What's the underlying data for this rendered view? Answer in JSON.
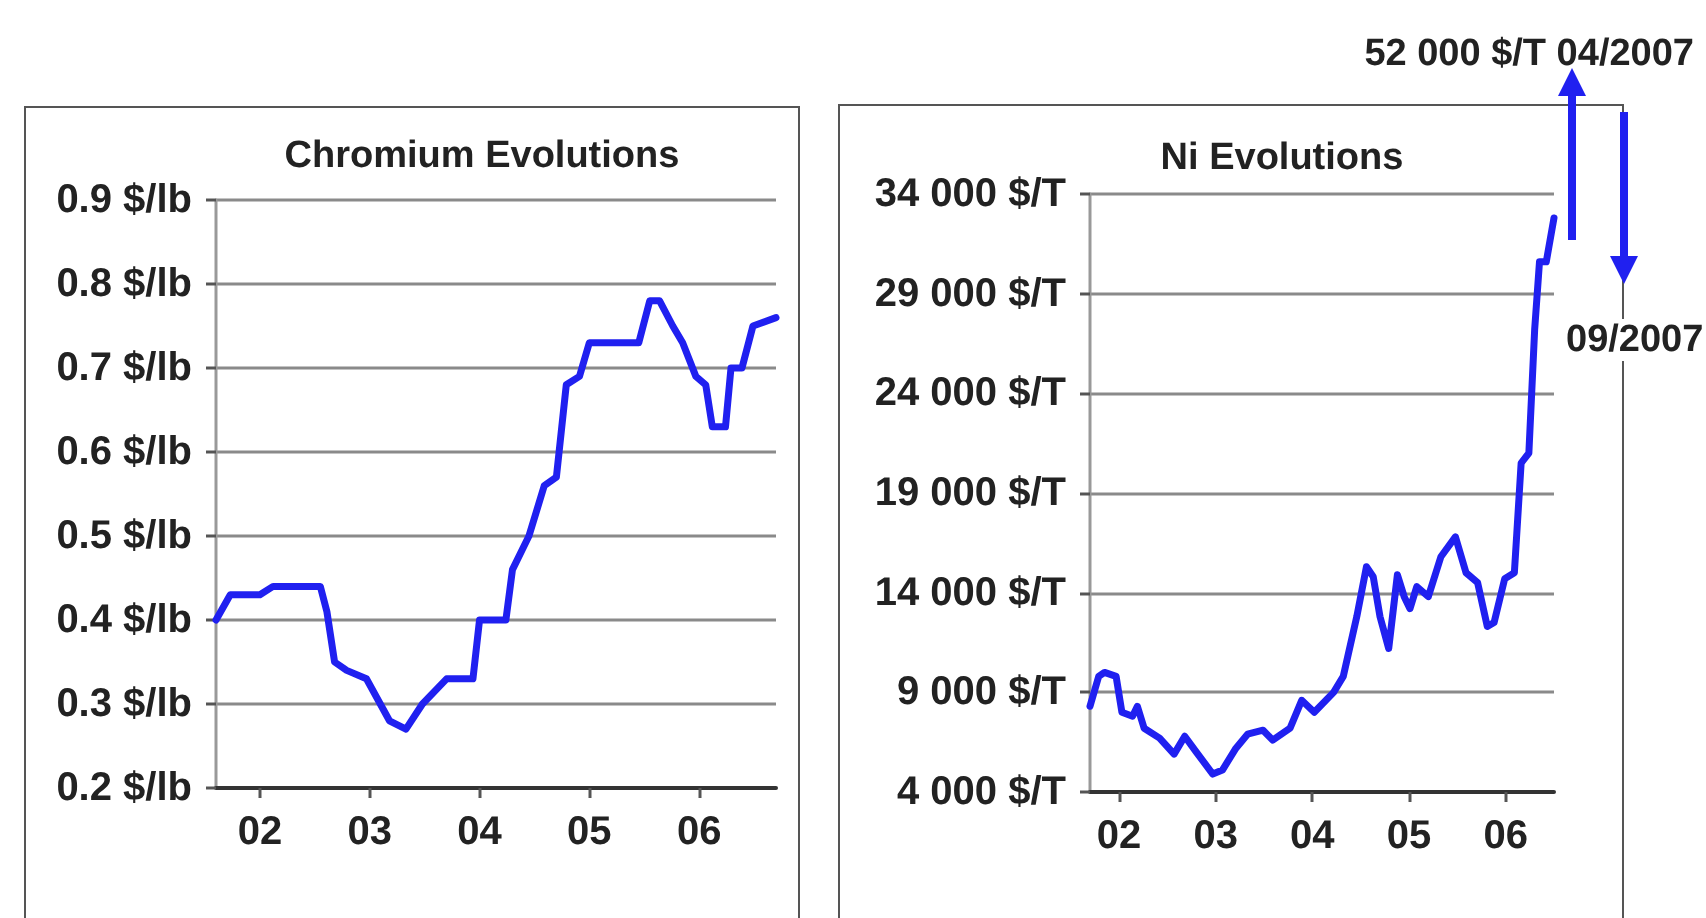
{
  "chart_data": [
    {
      "type": "line",
      "title": "Chromium Evolutions",
      "x": [
        2001.6,
        2001.73,
        2001.79,
        2002.0,
        2002.12,
        2002.55,
        2002.61,
        2002.68,
        2002.79,
        2002.97,
        2003.18,
        2003.33,
        2003.48,
        2003.7,
        2003.94,
        2004.0,
        2004.24,
        2004.3,
        2004.45,
        2004.59,
        2004.7,
        2004.79,
        2004.91,
        2005.0,
        2005.45,
        2005.55,
        2005.64,
        2005.76,
        2005.85,
        2005.97,
        2006.06,
        2006.12,
        2006.24,
        2006.29,
        2006.39,
        2006.49,
        2006.7
      ],
      "series": [
        {
          "color": "#2020f0",
          "values": [
            0.4,
            0.43,
            0.43,
            0.43,
            0.44,
            0.44,
            0.41,
            0.35,
            0.34,
            0.33,
            0.28,
            0.27,
            0.3,
            0.33,
            0.33,
            0.4,
            0.4,
            0.46,
            0.5,
            0.56,
            0.57,
            0.68,
            0.69,
            0.73,
            0.73,
            0.78,
            0.78,
            0.75,
            0.73,
            0.69,
            0.68,
            0.63,
            0.63,
            0.7,
            0.7,
            0.75,
            0.76
          ]
        }
      ],
      "xlim": [
        2001.6,
        2006.7
      ],
      "xticks": [
        {
          "value": 2002,
          "label": "02"
        },
        {
          "value": 2003,
          "label": "03"
        },
        {
          "value": 2004,
          "label": "04"
        },
        {
          "value": 2005,
          "label": "05"
        },
        {
          "value": 2006,
          "label": "06"
        }
      ],
      "ylim": [
        0.2,
        0.9
      ],
      "yticks": [
        {
          "value": 0.2,
          "label": "0.2 $/lb"
        },
        {
          "value": 0.3,
          "label": "0.3 $/lb"
        },
        {
          "value": 0.4,
          "label": "0.4 $/lb"
        },
        {
          "value": 0.5,
          "label": "0.5 $/lb"
        },
        {
          "value": 0.6,
          "label": "0.6 $/lb"
        },
        {
          "value": 0.7,
          "label": "0.7 $/lb"
        },
        {
          "value": 0.8,
          "label": "0.8 $/lb"
        },
        {
          "value": 0.9,
          "label": "0.9 $/lb"
        }
      ],
      "grid": "y",
      "marker": "none",
      "line_style": "solid"
    },
    {
      "type": "line",
      "title": "Ni Evolutions",
      "annotations": [
        "52 000 $/T 04/2007",
        "09/2007"
      ],
      "x": [
        2001.7,
        2001.79,
        2001.85,
        2001.97,
        2002.03,
        2002.14,
        2002.19,
        2002.26,
        2002.42,
        2002.57,
        2002.68,
        2002.8,
        2002.97,
        2003.07,
        2003.21,
        2003.33,
        2003.49,
        2003.59,
        2003.77,
        2003.89,
        2004.02,
        2004.22,
        2004.32,
        2004.46,
        2004.56,
        2004.63,
        2004.7,
        2004.79,
        2004.88,
        2004.95,
        2005.01,
        2005.08,
        2005.2,
        2005.33,
        2005.48,
        2005.59,
        2005.71,
        2005.81,
        2005.88,
        2005.99,
        2006.09,
        2006.16,
        2006.24,
        2006.3,
        2006.35,
        2006.42,
        2006.5
      ],
      "series": [
        {
          "color": "#2020f0",
          "values": [
            8300,
            9800,
            10000,
            9800,
            8000,
            7800,
            8300,
            7200,
            6700,
            5900,
            6800,
            6000,
            4900,
            5100,
            6200,
            6900,
            7100,
            6600,
            7200,
            8600,
            8000,
            9000,
            9800,
            12800,
            15300,
            14800,
            12800,
            11200,
            14900,
            13800,
            13200,
            14300,
            13800,
            15800,
            16800,
            15000,
            14500,
            12300,
            12500,
            14700,
            15000,
            20500,
            21000,
            27200,
            30600,
            30600,
            32800
          ]
        }
      ],
      "xlim": [
        2001.7,
        2006.5
      ],
      "xticks": [
        {
          "value": 2002,
          "label": "02"
        },
        {
          "value": 2003,
          "label": "03"
        },
        {
          "value": 2004,
          "label": "04"
        },
        {
          "value": 2005,
          "label": "05"
        },
        {
          "value": 2006,
          "label": "06"
        }
      ],
      "ylim": [
        4000,
        34000
      ],
      "yticks": [
        {
          "value": 4000,
          "label": "4 000 $/T"
        },
        {
          "value": 9000,
          "label": "9 000 $/T"
        },
        {
          "value": 14000,
          "label": "14 000 $/T"
        },
        {
          "value": 19000,
          "label": "19 000 $/T"
        },
        {
          "value": 24000,
          "label": "24 000 $/T"
        },
        {
          "value": 29000,
          "label": "29 000 $/T"
        },
        {
          "value": 34000,
          "label": "34 000 $/T"
        }
      ],
      "grid": "y",
      "marker": "none",
      "line_style": "solid"
    }
  ]
}
